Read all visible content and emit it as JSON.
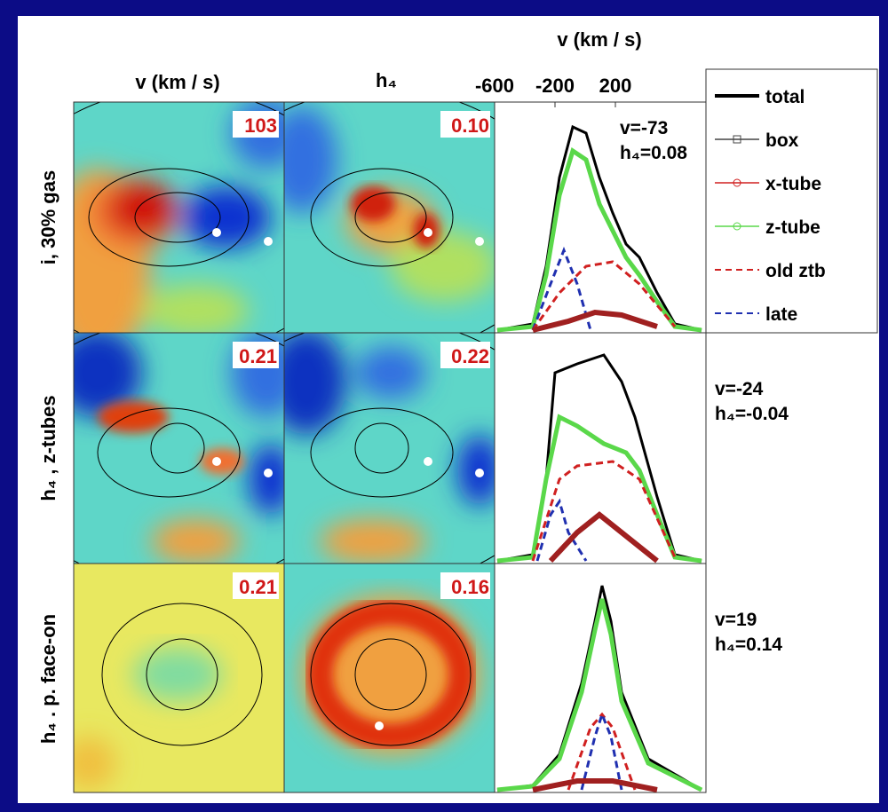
{
  "columns": {
    "velocity": "v (km / s)",
    "h4": "h₄"
  },
  "profile_axis": {
    "label": "v (km / s)",
    "ticks": [
      -600,
      -200,
      200
    ]
  },
  "rows": [
    {
      "label": "i, 30% gas",
      "v_max": "103",
      "h4_max": "0.10",
      "profile_v": "v=-73",
      "profile_h4": "h₄=0.08"
    },
    {
      "label": "h₄ , z-tubes",
      "v_max": "0.21",
      "h4_max": "0.22",
      "profile_v": "v=-24",
      "profile_h4": "h₄=-0.04"
    },
    {
      "label": "h₄ . p. face-on",
      "v_max": "0.21",
      "h4_max": "0.16",
      "profile_v": "v=19",
      "profile_h4": "h₄=0.14"
    }
  ],
  "legend": [
    "total",
    "box",
    "x-tube",
    "z-tube",
    "old ztb",
    "late"
  ]
}
